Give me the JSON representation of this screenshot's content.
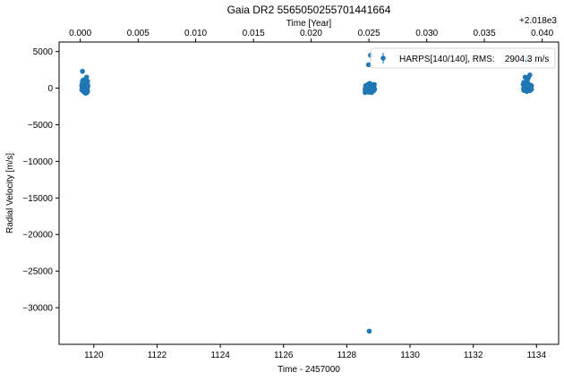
{
  "chart_data": {
    "type": "scatter",
    "title": "Gaia DR2 5565050255701441664",
    "xlabel": "Time - 2457000",
    "ylabel": "Radial Velocity [m/s]",
    "top_xlabel": "Time [Year]",
    "top_offset_text": "+2.018e3",
    "xlim": [
      1118.9,
      1134.7
    ],
    "ylim": [
      -35000,
      6300
    ],
    "x_ticks": [
      1120,
      1122,
      1124,
      1126,
      1128,
      1130,
      1132,
      1134
    ],
    "x_tick_labels": [
      "1120",
      "1122",
      "1124",
      "1126",
      "1128",
      "1130",
      "1132",
      "1134"
    ],
    "y_ticks": [
      5000,
      0,
      -5000,
      -10000,
      -15000,
      -20000,
      -25000,
      -30000
    ],
    "y_tick_labels": [
      "5000",
      "0",
      "−5000",
      "−10000",
      "−15000",
      "−20000",
      "−25000",
      "−30000"
    ],
    "top_ticks": [
      1119.57,
      1121.4,
      1123.22,
      1125.05,
      1126.87,
      1128.7,
      1130.53,
      1132.35,
      1134.18
    ],
    "top_tick_labels": [
      "0.000",
      "0.005",
      "0.010",
      "0.015",
      "0.020",
      "0.025",
      "0.030",
      "0.035",
      "0.040"
    ],
    "grid": false,
    "legend_position": "top-right",
    "colors": {
      "series": "#1f77b4"
    },
    "series": [
      {
        "name": "HARPS[140/140], RMS:    2904.3 m/s",
        "x": [
          1119.62,
          1119.64,
          1119.66,
          1119.68,
          1119.7,
          1119.72,
          1119.74,
          1119.76,
          1119.78,
          1119.8,
          1119.63,
          1119.65,
          1119.67,
          1119.69,
          1119.71,
          1119.73,
          1119.75,
          1119.77,
          1119.79,
          1119.81,
          1119.62,
          1119.66,
          1119.7,
          1119.74,
          1119.78,
          1119.64,
          1119.68,
          1119.72,
          1119.76,
          1119.8,
          1119.63,
          1119.67,
          1119.71,
          1119.75,
          1119.79,
          1119.66,
          1119.74,
          1119.62,
          1119.7,
          1119.78,
          1119.64,
          1119.72,
          1119.8,
          1119.77,
          1119.68,
          1119.74,
          1128.58,
          1128.6,
          1128.62,
          1128.64,
          1128.66,
          1128.68,
          1128.7,
          1128.72,
          1128.74,
          1128.76,
          1128.78,
          1128.8,
          1128.82,
          1128.84,
          1128.86,
          1128.88,
          1128.59,
          1128.63,
          1128.67,
          1128.71,
          1128.75,
          1128.79,
          1128.83,
          1128.87,
          1128.61,
          1128.65,
          1128.69,
          1128.73,
          1128.77,
          1128.81,
          1128.85,
          1128.6,
          1128.64,
          1128.68,
          1128.72,
          1128.76,
          1128.8,
          1128.84,
          1128.62,
          1128.7,
          1128.78,
          1128.86,
          1128.66,
          1128.74,
          1128.82,
          1128.75,
          1128.69,
          1128.6,
          1128.8,
          1128.73,
          1128.58,
          1128.84,
          1128.71,
          1133.58,
          1133.6,
          1133.62,
          1133.64,
          1133.66,
          1133.68,
          1133.7,
          1133.72,
          1133.74,
          1133.76,
          1133.78,
          1133.8,
          1133.82,
          1133.84,
          1133.59,
          1133.63,
          1133.67,
          1133.71,
          1133.75,
          1133.79,
          1133.83,
          1133.61,
          1133.65,
          1133.69,
          1133.73,
          1133.77,
          1133.81,
          1133.6,
          1133.66,
          1133.72,
          1133.78,
          1133.84,
          1133.64,
          1133.7,
          1133.76,
          1133.82,
          1133.75,
          1133.79,
          1133.72,
          1133.68,
          1133.7
        ],
        "y": [
          300,
          600,
          -200,
          150,
          800,
          -400,
          250,
          100,
          -600,
          500,
          0,
          -300,
          450,
          200,
          -100,
          700,
          350,
          -500,
          50,
          250,
          -250,
          650,
          150,
          -150,
          400,
          900,
          -350,
          100,
          300,
          -450,
          550,
          -50,
          200,
          750,
          -200,
          1100,
          -700,
          400,
          -100,
          600,
          2300,
          1200,
          950,
          1500,
          -500,
          300,
          -200,
          300,
          -500,
          100,
          400,
          -300,
          600,
          200,
          -100,
          500,
          -600,
          150,
          350,
          -400,
          250,
          -150,
          0,
          -250,
          450,
          -50,
          300,
          -350,
          100,
          500,
          -450,
          200,
          -100,
          650,
          -200,
          350,
          50,
          -300,
          400,
          -150,
          550,
          100,
          -400,
          250,
          150,
          -550,
          300,
          -50,
          450,
          -250,
          200,
          4500,
          3200,
          350,
          -150,
          0,
          -600,
          100,
          -33200,
          500,
          -300,
          200,
          -100,
          600,
          -400,
          100,
          300,
          -200,
          450,
          -150,
          250,
          0,
          350,
          -50,
          400,
          -250,
          150,
          550,
          -350,
          200,
          -100,
          700,
          -450,
          300,
          50,
          -200,
          800,
          -300,
          1200,
          100,
          -150,
          1500,
          900,
          -250,
          400,
          1500,
          1800,
          3900,
          1400,
          -100
        ]
      }
    ]
  }
}
